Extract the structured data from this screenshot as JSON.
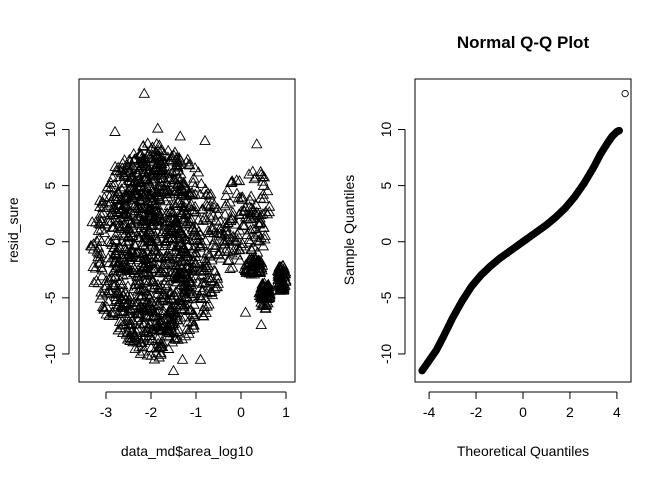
{
  "chart_data": [
    {
      "type": "scatter",
      "title": "",
      "xlabel": "data_md$area_log10",
      "ylabel": "resid_sure",
      "marker": "triangle-open",
      "xlim": [
        -3.6,
        1.2
      ],
      "ylim": [
        -12.5,
        14.5
      ],
      "xticks": [
        -3,
        -2,
        -1,
        0,
        1
      ],
      "yticks": [
        -10,
        -5,
        0,
        5,
        10
      ],
      "grid": false,
      "legend": "none",
      "clusters": [
        {
          "x_min": -3.4,
          "x_max": -0.4,
          "y_min": -9.5,
          "y_max": 8.5
        },
        {
          "x_min": -2.9,
          "x_max": -1.0,
          "y_min": -10.5,
          "y_max": 9.0
        },
        {
          "x_min": -0.4,
          "x_max": 0.1,
          "y_min": -3.0,
          "y_max": 6.0
        },
        {
          "x_min": 0.0,
          "x_max": 0.65,
          "y_min": -1.0,
          "y_max": 6.5
        },
        {
          "x_min": 0.05,
          "x_max": 0.5,
          "y_min": -3.0,
          "y_max": -1.5
        },
        {
          "x_min": 0.4,
          "x_max": 0.65,
          "y_min": -6.0,
          "y_max": -3.5
        },
        {
          "x_min": 0.8,
          "x_max": 1.0,
          "y_min": -4.5,
          "y_max": -2.0
        }
      ],
      "outliers": [
        {
          "x": -2.15,
          "y": 13.2
        },
        {
          "x": -2.8,
          "y": 9.8
        },
        {
          "x": -1.85,
          "y": 10.1
        },
        {
          "x": -1.35,
          "y": 9.4
        },
        {
          "x": -0.8,
          "y": 9.0
        },
        {
          "x": 0.35,
          "y": 8.7
        },
        {
          "x": -1.5,
          "y": -11.5
        },
        {
          "x": -1.3,
          "y": -10.5
        },
        {
          "x": -0.9,
          "y": -10.5
        },
        {
          "x": 0.45,
          "y": -7.4
        },
        {
          "x": 0.1,
          "y": -6.3
        }
      ]
    },
    {
      "type": "scatter",
      "title": "Normal Q-Q Plot",
      "xlabel": "Theoretical Quantiles",
      "ylabel": "Sample Quantiles",
      "marker": "circle-open",
      "xlim": [
        -4.6,
        4.6
      ],
      "ylim": [
        -12.5,
        14.5
      ],
      "xticks": [
        -4,
        -2,
        0,
        2,
        4
      ],
      "yticks": [
        -10,
        -5,
        0,
        5,
        10
      ],
      "grid": false,
      "legend": "none",
      "curve": [
        [
          -4.3,
          -11.5
        ],
        [
          -4.0,
          -10.6
        ],
        [
          -3.7,
          -9.7
        ],
        [
          -3.4,
          -8.5
        ],
        [
          -3.0,
          -6.8
        ],
        [
          -2.6,
          -5.3
        ],
        [
          -2.2,
          -4.0
        ],
        [
          -1.8,
          -3.0
        ],
        [
          -1.4,
          -2.2
        ],
        [
          -1.0,
          -1.5
        ],
        [
          -0.6,
          -0.9
        ],
        [
          -0.2,
          -0.3
        ],
        [
          0.0,
          0.0
        ],
        [
          0.2,
          0.3
        ],
        [
          0.6,
          0.9
        ],
        [
          1.0,
          1.5
        ],
        [
          1.4,
          2.2
        ],
        [
          1.8,
          3.0
        ],
        [
          2.2,
          4.0
        ],
        [
          2.6,
          5.2
        ],
        [
          3.0,
          6.6
        ],
        [
          3.3,
          7.8
        ],
        [
          3.6,
          8.8
        ],
        [
          3.8,
          9.4
        ],
        [
          4.0,
          9.8
        ],
        [
          4.1,
          9.9
        ]
      ],
      "outliers": [
        {
          "x": 4.35,
          "y": 13.2
        }
      ]
    }
  ]
}
